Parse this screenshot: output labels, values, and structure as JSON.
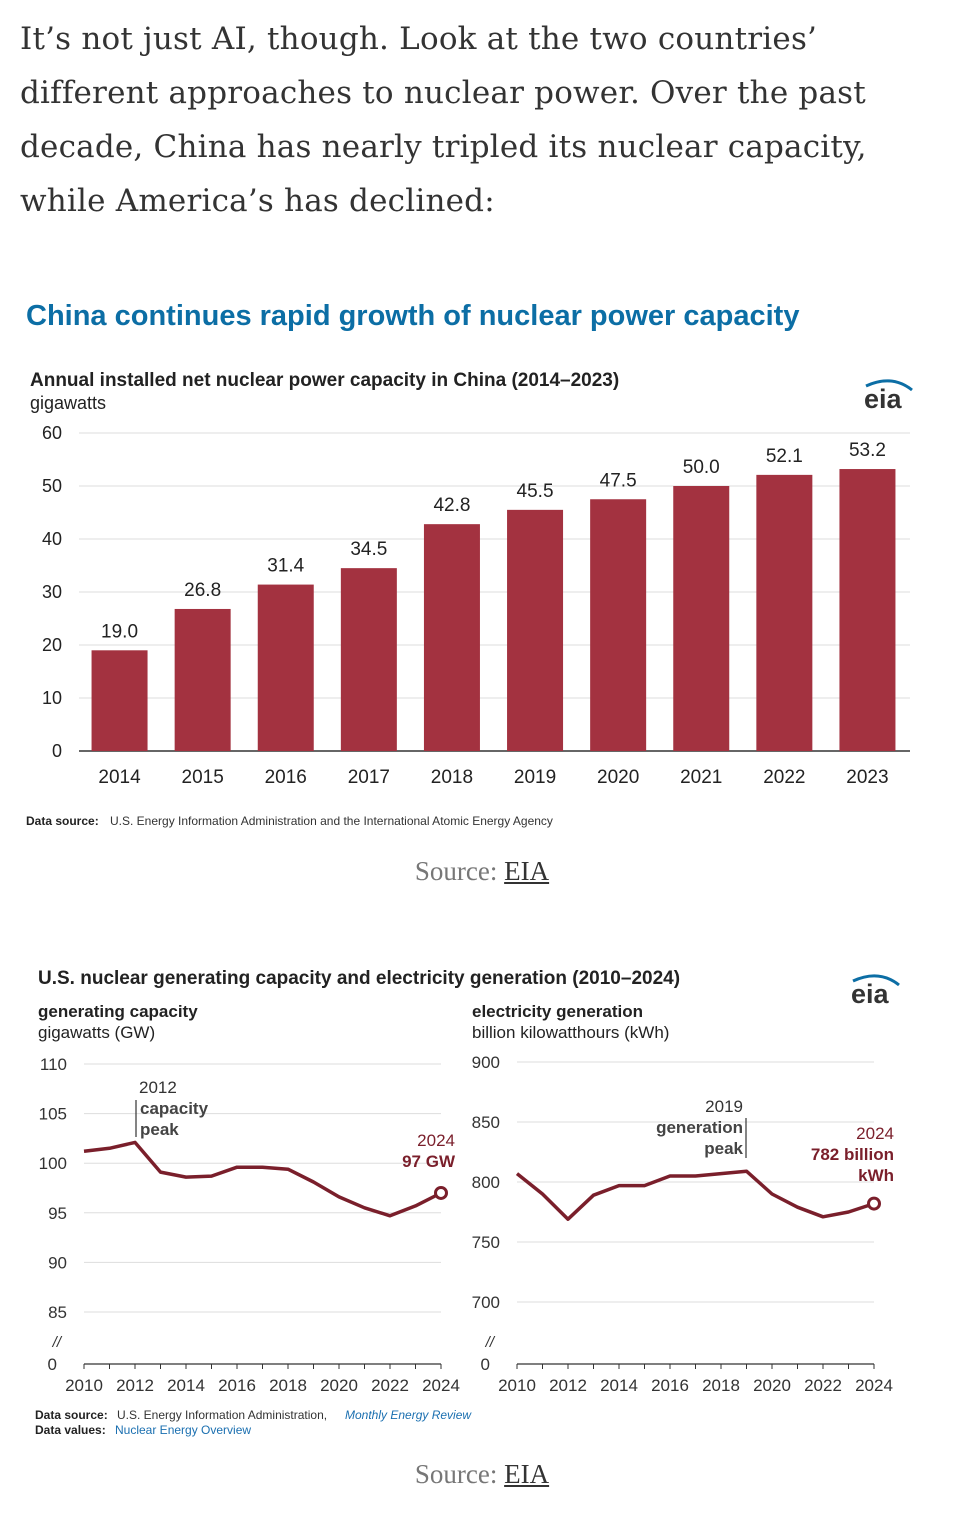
{
  "article": {
    "paragraph": "It’s not just AI, though. Look at the two countries’ different approaches to nuclear power. Over the past decade, China has nearly tripled its nuclear capacity, while America’s has declined:"
  },
  "captions": [
    {
      "prefix": "Source: ",
      "link": "EIA"
    },
    {
      "prefix": "Source: ",
      "link": "EIA"
    }
  ],
  "colors": {
    "bar": "#a33240",
    "line": "#7a1f2b",
    "headline": "#0c6ea5",
    "link": "#1a6fb0"
  },
  "chart1_text": {
    "headline": "China continues rapid growth of nuclear power capacity",
    "logo": "eia",
    "source_label": "Data source:",
    "source_text": "U.S. Energy Information Administration and the International Atomic Energy Agency"
  },
  "chart2_text": {
    "logo": "eia",
    "source_label": "Data source:",
    "source_text": "U.S. Energy Information Administration,",
    "source_link": "Monthly Energy Review",
    "values_label": "Data values:",
    "values_link": "Nuclear Energy Overview"
  },
  "chart_data": [
    {
      "type": "bar",
      "title": "Annual installed net nuclear power capacity in China (2014–2023)",
      "ylabel": "gigawatts",
      "xlabel": "",
      "categories": [
        "2014",
        "2015",
        "2016",
        "2017",
        "2018",
        "2019",
        "2020",
        "2021",
        "2022",
        "2023"
      ],
      "values": [
        19.0,
        26.8,
        31.4,
        34.5,
        42.8,
        45.5,
        47.5,
        50.0,
        52.1,
        53.2
      ],
      "data_labels": [
        "19.0",
        "26.8",
        "31.4",
        "34.5",
        "42.8",
        "45.5",
        "47.5",
        "50.0",
        "52.1",
        "53.2"
      ],
      "ylim": [
        0,
        60
      ],
      "yticks": [
        "0",
        "10",
        "20",
        "30",
        "40",
        "50",
        "60"
      ],
      "grid": true
    },
    {
      "type": "line",
      "title": "U.S. nuclear generating capacity and electricity generation (2010–2024)",
      "ylabel": "generating capacity",
      "yunit": "gigawatts (GW)",
      "x": [
        2010,
        2011,
        2012,
        2013,
        2014,
        2015,
        2016,
        2017,
        2018,
        2019,
        2020,
        2021,
        2022,
        2023,
        2024
      ],
      "values": [
        101.2,
        101.5,
        102.1,
        99.1,
        98.6,
        98.7,
        99.6,
        99.6,
        99.4,
        98.1,
        96.6,
        95.5,
        94.7,
        95.7,
        97.0
      ],
      "ylim": [
        85,
        110
      ],
      "yticks": [
        "110",
        "105",
        "100",
        "95",
        "90",
        "85"
      ],
      "axis_zero": "0",
      "axis_break": "//",
      "xticks": [
        "2010",
        "2012",
        "2014",
        "2016",
        "2018",
        "2020",
        "2022",
        "2024"
      ],
      "annotations": [
        {
          "year": "2012",
          "text1": "capacity",
          "text2": "peak"
        },
        {
          "year": "2024",
          "text1": "97 GW"
        }
      ]
    },
    {
      "type": "line",
      "ylabel": "electricity generation",
      "yunit": "billion kilowatthours (kWh)",
      "x": [
        2010,
        2011,
        2012,
        2013,
        2014,
        2015,
        2016,
        2017,
        2018,
        2019,
        2020,
        2021,
        2022,
        2023,
        2024
      ],
      "values": [
        807,
        790,
        769,
        789,
        797,
        797,
        805,
        805,
        807,
        809,
        790,
        779,
        771,
        775,
        782
      ],
      "ylim": [
        700,
        900
      ],
      "yticks": [
        "900",
        "850",
        "800",
        "750",
        "700"
      ],
      "axis_zero": "0",
      "axis_break": "//",
      "xticks": [
        "2010",
        "2012",
        "2014",
        "2016",
        "2018",
        "2020",
        "2022",
        "2024"
      ],
      "annotations": [
        {
          "year": "2019",
          "text1": "generation",
          "text2": "peak"
        },
        {
          "year": "2024",
          "text1": "782 billion",
          "text2": "kWh"
        }
      ]
    }
  ]
}
